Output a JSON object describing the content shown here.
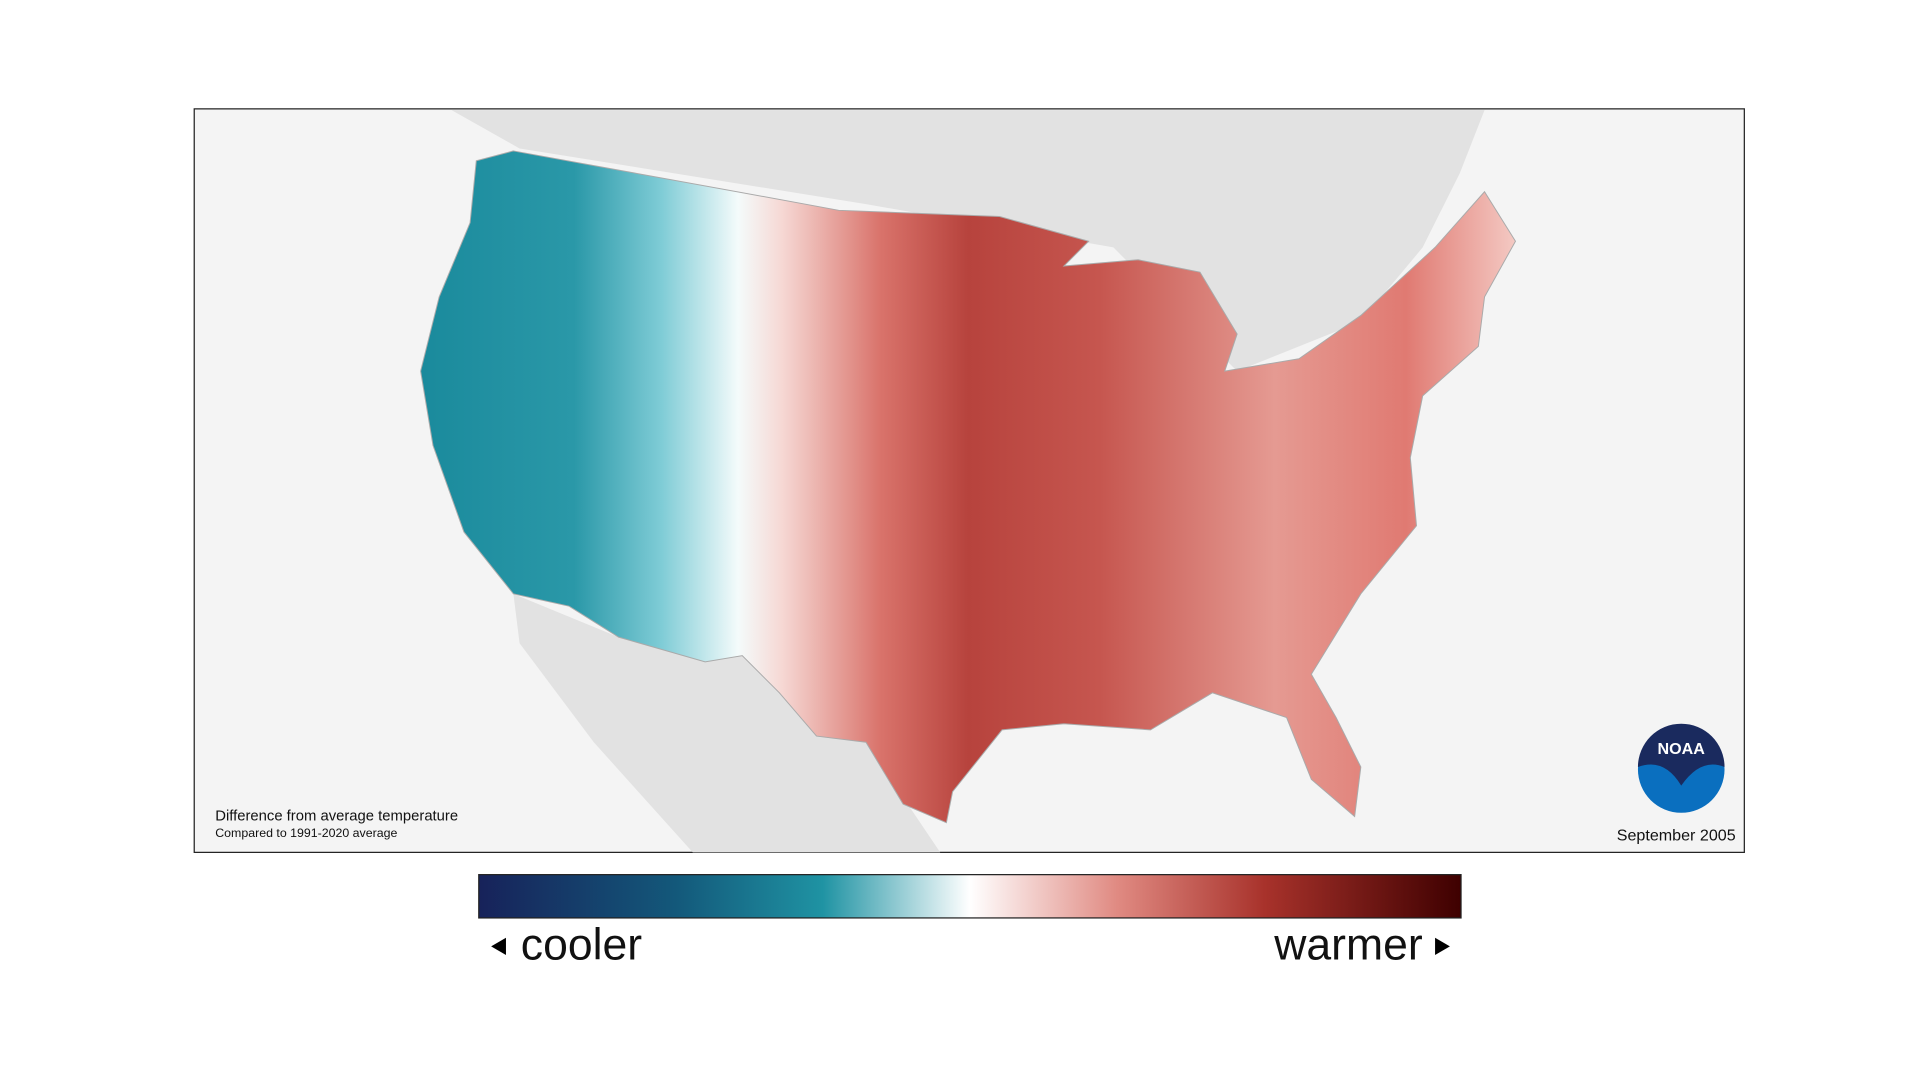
{
  "map": {
    "caption": "Difference from average temperature",
    "subcaption": "Compared to 1991-2020 average",
    "date": "September 2005"
  },
  "logo": {
    "text": "NOAA"
  },
  "legend": {
    "low_label": "cooler",
    "high_label": "warmer"
  }
}
